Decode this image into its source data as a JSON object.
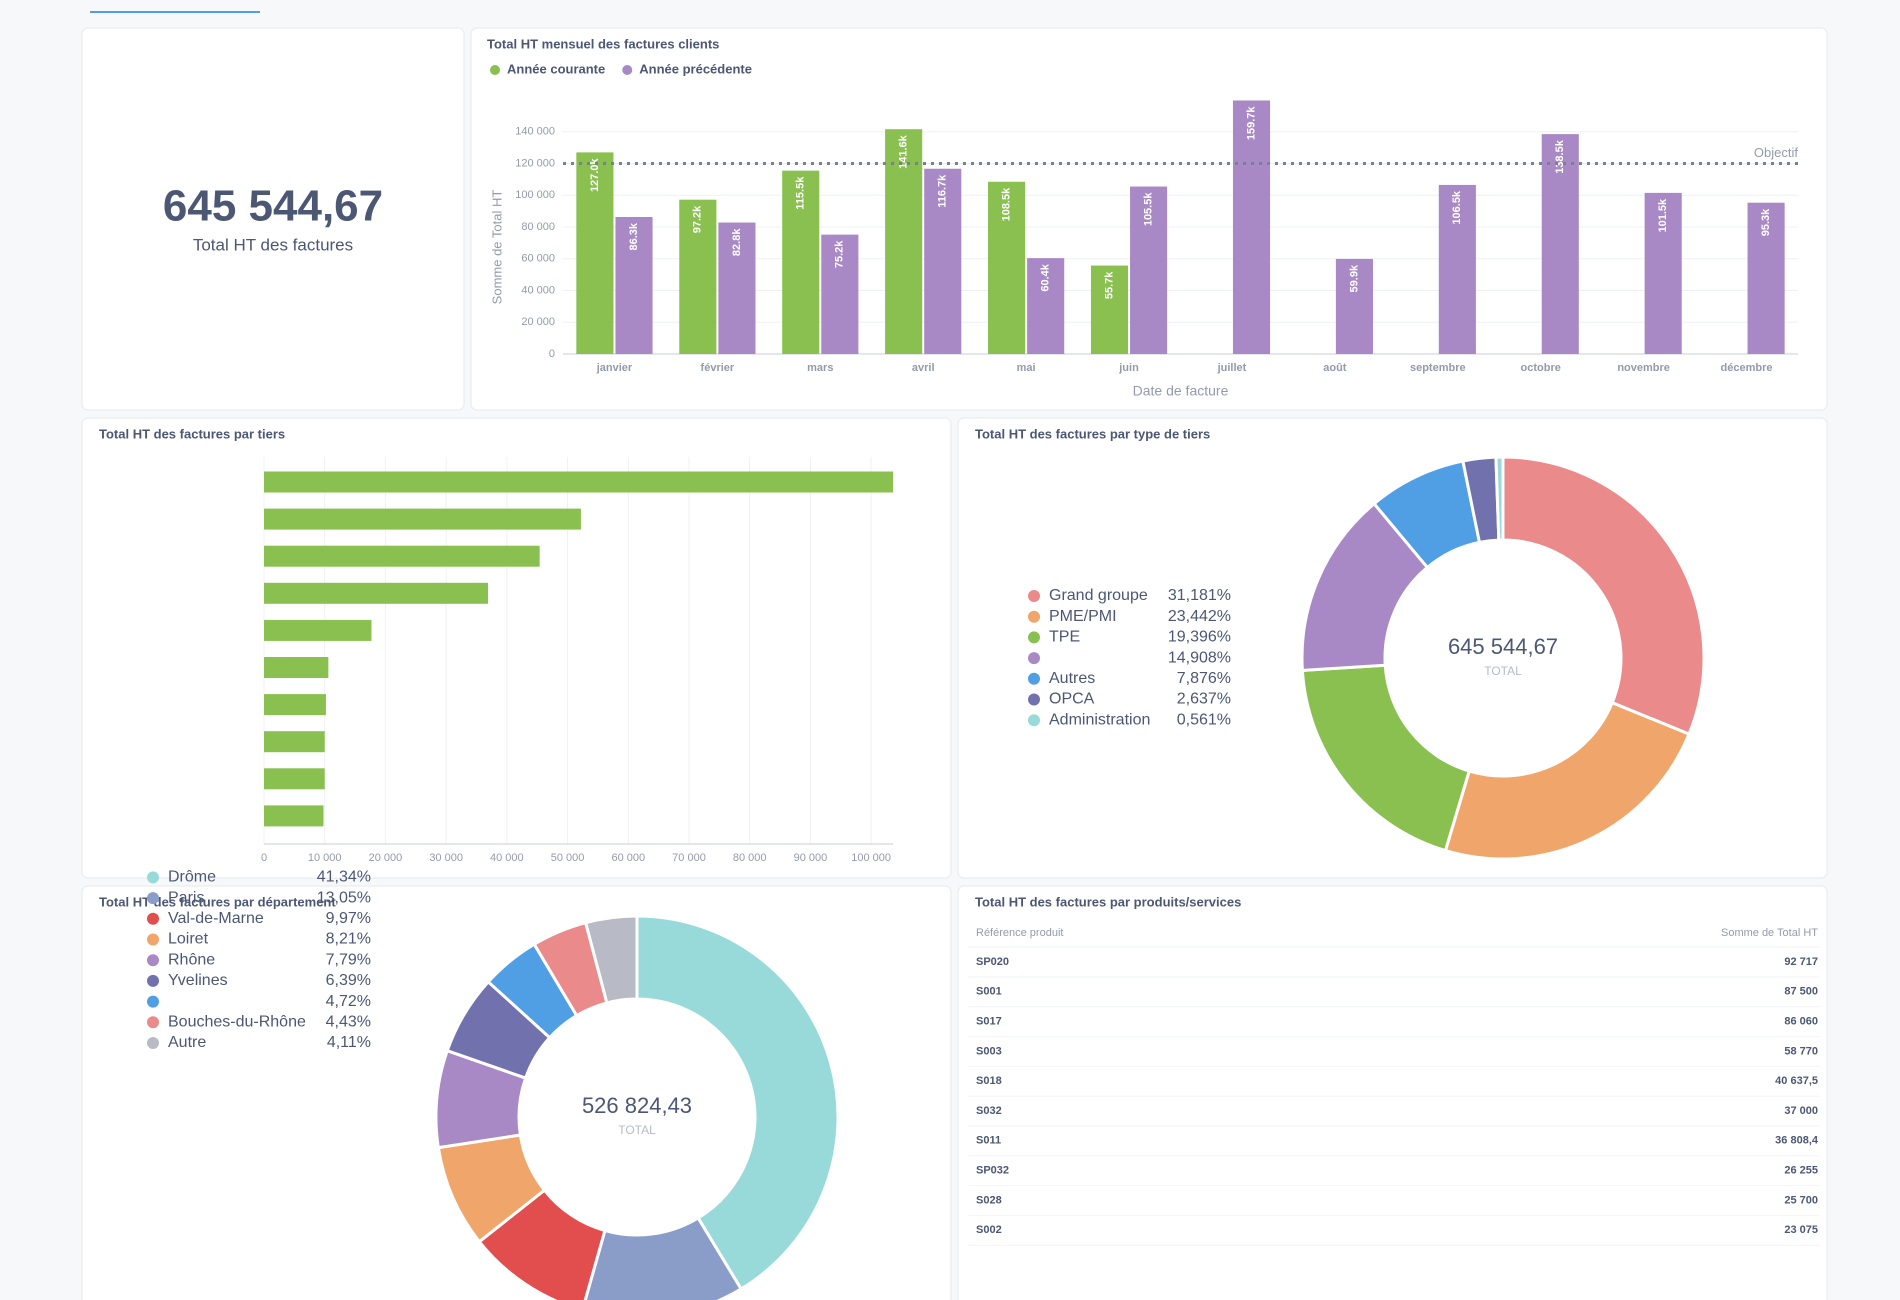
{
  "kpi": {
    "value": "645 544,67",
    "label": "Total HT des factures"
  },
  "chart_data": [
    {
      "type": "bar",
      "title": "Total HT mensuel des factures clients",
      "categories": [
        "janvier",
        "février",
        "mars",
        "avril",
        "mai",
        "juin",
        "juillet",
        "août",
        "septembre",
        "octobre",
        "novembre",
        "décembre"
      ],
      "series": [
        {
          "name": "Année courante",
          "color": "#89c04f",
          "values": [
            127000,
            97200,
            115500,
            141600,
            108500,
            55700,
            null,
            null,
            null,
            null,
            null,
            null
          ],
          "value_labels": [
            "127.0k",
            "97.2k",
            "115.5k",
            "141.6k",
            "108.5k",
            "55.7k",
            null,
            null,
            null,
            null,
            null,
            null
          ]
        },
        {
          "name": "Année précédente",
          "color": "#a989c5",
          "values": [
            86300,
            82800,
            75200,
            116700,
            60400,
            105500,
            159700,
            59900,
            106500,
            138500,
            101500,
            95300
          ],
          "value_labels": [
            "86.3k",
            "82.8k",
            "75.2k",
            "116.7k",
            "60.4k",
            "105.5k",
            "159.7k",
            "59.9k",
            "106.5k",
            "138.5k",
            "101.5k",
            "95.3k"
          ]
        }
      ],
      "ylim": [
        0,
        160000
      ],
      "yticks": [
        0,
        {
          "value": 20000,
          "label": "20 000"
        },
        {
          "value": 40000,
          "label": "40 000"
        },
        {
          "value": 60000,
          "label": "60 000"
        },
        {
          "value": 80000,
          "label": "80 000"
        },
        {
          "value": 100000,
          "label": "100 000"
        },
        {
          "value": 120000,
          "label": "120 000"
        },
        {
          "value": 140000,
          "label": "140 000"
        }
      ],
      "ylabel": "Somme de Total HT",
      "xlabel": "Date de facture",
      "goal": 120000,
      "goal_label": "Objectif",
      "grid": true
    },
    {
      "type": "barh",
      "title": "Total HT des factures par tiers",
      "categories": [
        null,
        null,
        null,
        null,
        null,
        null,
        null,
        null,
        null,
        null
      ],
      "values": [
        103600,
        52200,
        45400,
        36900,
        17700,
        10600,
        10200,
        10000,
        10000,
        9800
      ],
      "color": "#89c04f",
      "xlim": [
        0,
        103600
      ],
      "xticks": [
        0,
        {
          "value": 10000,
          "label": "10 000"
        },
        {
          "value": 20000,
          "label": "20 000"
        },
        {
          "value": 30000,
          "label": "30 000"
        },
        {
          "value": 40000,
          "label": "40 000"
        },
        {
          "value": 50000,
          "label": "50 000"
        },
        {
          "value": 60000,
          "label": "60 000"
        },
        {
          "value": 70000,
          "label": "70 000"
        },
        {
          "value": 80000,
          "label": "80 000"
        },
        {
          "value": 90000,
          "label": "90 000"
        },
        {
          "value": 100000,
          "label": "100 000"
        }
      ],
      "grid": true
    },
    {
      "type": "pie",
      "title": "Total HT des factures par type de tiers",
      "categories": [
        "Grand groupe",
        "PME/PMI",
        "TPE",
        null,
        "Autres",
        "OPCA",
        "Administration"
      ],
      "values": [
        31.181,
        23.442,
        19.396,
        14.908,
        7.876,
        2.637,
        0.561
      ],
      "value_labels": [
        "31,181%",
        "23,442%",
        "19,396%",
        "14,908%",
        "7,876%",
        "2,637%",
        "0,561%"
      ],
      "colors": [
        "#ea8a8a",
        "#f0a66a",
        "#89c04f",
        "#a989c5",
        "#509ee3",
        "#7172ad",
        "#98d9d9"
      ],
      "total": "645 544,67",
      "total_label": "TOTAL"
    },
    {
      "type": "pie",
      "title": "Total HT des factures par département",
      "categories": [
        "Drôme",
        "Paris",
        "Val-de-Marne",
        "Loiret",
        "Rhône",
        "Yvelines",
        null,
        "Bouches-du-Rhône",
        "Autre"
      ],
      "values": [
        41.34,
        13.05,
        9.97,
        8.21,
        7.79,
        6.39,
        4.72,
        4.43,
        4.11
      ],
      "value_labels": [
        "41,34%",
        "13,05%",
        "9,97%",
        "8,21%",
        "7,79%",
        "6,39%",
        "4,72%",
        "4,43%",
        "4,11%"
      ],
      "colors": [
        "#98d9d9",
        "#8a9cc8",
        "#e24d4d",
        "#f0a66a",
        "#a989c5",
        "#7172ad",
        "#509ee3",
        "#ea8a8a",
        "#b8bbc5"
      ],
      "total": "526 824,43",
      "total_label": "TOTAL"
    }
  ],
  "table": {
    "title": "Total HT des factures par produits/services",
    "columns": [
      "Référence produit",
      "Somme de Total HT"
    ],
    "rows": [
      [
        "SP020",
        "92 717"
      ],
      [
        "S001",
        "87 500"
      ],
      [
        "S017",
        "86 060"
      ],
      [
        "S003",
        "58 770"
      ],
      [
        "S018",
        "40 637,5"
      ],
      [
        "S032",
        "37 000"
      ],
      [
        "S011",
        "36 808,4"
      ],
      [
        "SP032",
        "26 255"
      ],
      [
        "S028",
        "25 700"
      ],
      [
        "S002",
        "23 075"
      ]
    ]
  }
}
